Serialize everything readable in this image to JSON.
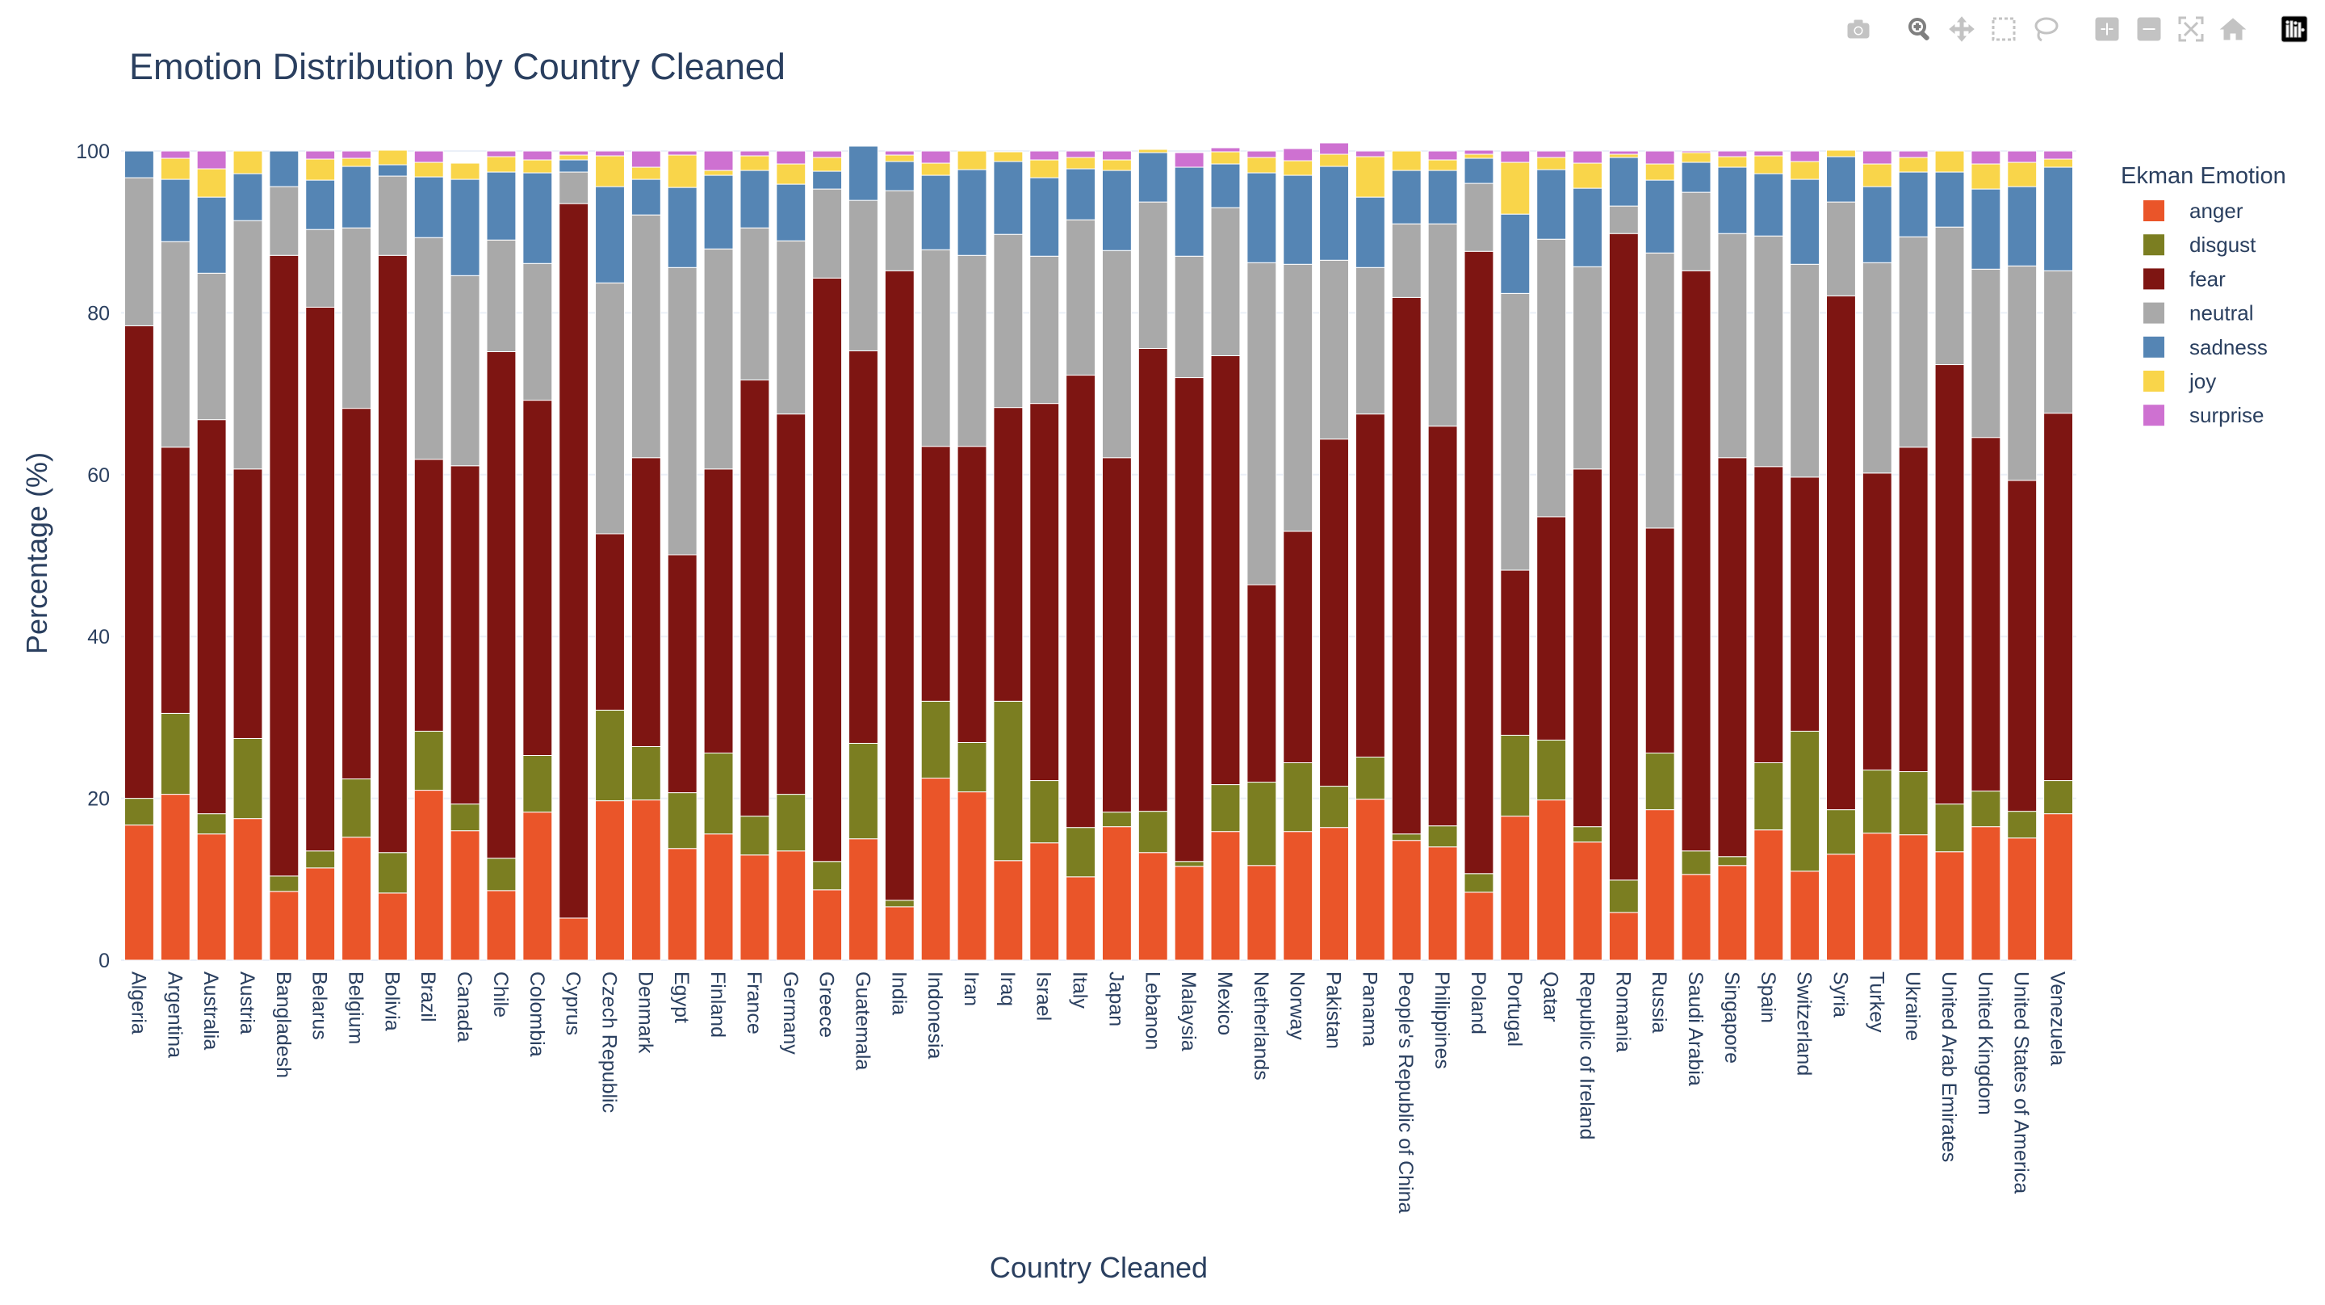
{
  "modebar": {
    "buttons": [
      {
        "name": "camera-icon",
        "group": 1
      },
      {
        "name": "zoom-icon",
        "group": 2
      },
      {
        "name": "pan-icon",
        "group": 2
      },
      {
        "name": "box-select-icon",
        "group": 2
      },
      {
        "name": "lasso-select-icon",
        "group": 2
      },
      {
        "name": "zoom-in-icon",
        "group": 3
      },
      {
        "name": "zoom-out-icon",
        "group": 3
      },
      {
        "name": "autoscale-icon",
        "group": 3
      },
      {
        "name": "reset-axes-icon",
        "group": 3
      },
      {
        "name": "plotly-logo-icon",
        "group": 4
      }
    ],
    "icon_color": "#c3c3c3",
    "active_color": "#7f7f7f"
  },
  "chart_data": {
    "type": "bar",
    "barmode": "stack",
    "title": "Emotion Distribution by Country Cleaned",
    "xlabel": "Country Cleaned",
    "ylabel": "Percentage (%)",
    "ylim": [
      0,
      100
    ],
    "yticks": [
      0,
      20,
      40,
      60,
      80,
      100
    ],
    "grid": true,
    "legend_title": "Ekman Emotion",
    "legend_position": "top-right",
    "categories": [
      "Algeria",
      "Argentina",
      "Australia",
      "Austria",
      "Bangladesh",
      "Belarus",
      "Belgium",
      "Bolivia",
      "Brazil",
      "Canada",
      "Chile",
      "Colombia",
      "Cyprus",
      "Czech Republic",
      "Denmark",
      "Egypt",
      "Finland",
      "France",
      "Germany",
      "Greece",
      "Guatemala",
      "India",
      "Indonesia",
      "Iran",
      "Iraq",
      "Israel",
      "Italy",
      "Japan",
      "Lebanon",
      "Malaysia",
      "Mexico",
      "Netherlands",
      "Norway",
      "Pakistan",
      "Panama",
      "People's Republic of China",
      "Philippines",
      "Poland",
      "Portugal",
      "Qatar",
      "Republic of Ireland",
      "Romania",
      "Russia",
      "Saudi Arabia",
      "Singapore",
      "Spain",
      "Switzerland",
      "Syria",
      "Turkey",
      "Ukraine",
      "United Arab Emirates",
      "United Kingdom",
      "United States of America",
      "Venezuela"
    ],
    "series": [
      {
        "name": "anger",
        "color": "#ea5529",
        "values": [
          16.7,
          20.5,
          15.6,
          17.5,
          8.5,
          11.4,
          15.2,
          8.3,
          21.0,
          16.0,
          8.6,
          18.3,
          5.2,
          19.7,
          19.8,
          13.8,
          15.6,
          13.0,
          13.5,
          8.7,
          15.0,
          6.6,
          22.5,
          20.8,
          12.3,
          14.5,
          10.3,
          16.5,
          13.3,
          11.6,
          15.9,
          11.7,
          15.9,
          16.4,
          19.9,
          14.8,
          14.0,
          8.4,
          17.8,
          19.8,
          14.6,
          5.9,
          18.6,
          10.6,
          11.7,
          16.1,
          11.0,
          13.1,
          15.7,
          15.5,
          13.4,
          16.5,
          15.1,
          18.1
        ]
      },
      {
        "name": "disgust",
        "color": "#7b7e21",
        "values": [
          3.3,
          10.0,
          2.5,
          9.9,
          1.9,
          2.1,
          7.2,
          5.0,
          7.3,
          3.3,
          4.0,
          7.0,
          0.0,
          11.2,
          6.6,
          6.9,
          10.0,
          4.8,
          7.0,
          3.5,
          11.8,
          0.8,
          9.5,
          6.1,
          19.7,
          7.7,
          6.1,
          1.8,
          5.1,
          0.6,
          5.8,
          10.3,
          8.5,
          5.1,
          5.2,
          0.8,
          2.6,
          2.3,
          10.0,
          7.4,
          1.9,
          4.0,
          7.0,
          2.9,
          1.1,
          8.3,
          17.3,
          5.5,
          7.8,
          7.8,
          5.9,
          4.4,
          3.3,
          4.1
        ]
      },
      {
        "name": "fear",
        "color": "#7e1512",
        "values": [
          58.4,
          32.9,
          48.7,
          33.3,
          76.7,
          67.2,
          45.8,
          73.8,
          33.6,
          41.8,
          62.6,
          43.9,
          88.3,
          21.8,
          35.7,
          29.4,
          35.1,
          53.9,
          47.0,
          72.1,
          48.5,
          77.8,
          31.5,
          36.6,
          36.3,
          46.6,
          55.9,
          43.8,
          57.2,
          59.8,
          53.0,
          24.4,
          28.6,
          42.9,
          42.4,
          66.3,
          49.4,
          76.9,
          20.4,
          27.6,
          44.2,
          79.9,
          27.8,
          71.7,
          49.3,
          36.6,
          31.4,
          63.5,
          36.7,
          40.1,
          54.3,
          43.7,
          40.9,
          45.4
        ]
      },
      {
        "name": "neutral",
        "color": "#a9a9a9",
        "values": [
          18.3,
          25.4,
          18.1,
          30.7,
          8.5,
          9.6,
          22.3,
          9.8,
          27.4,
          23.5,
          13.8,
          16.9,
          3.9,
          31.0,
          30.0,
          35.5,
          27.2,
          18.8,
          21.4,
          11.0,
          18.6,
          9.9,
          24.3,
          23.6,
          21.4,
          18.2,
          19.2,
          25.6,
          18.1,
          15.0,
          18.3,
          39.8,
          33.0,
          22.1,
          18.1,
          9.1,
          25.0,
          8.4,
          34.2,
          34.3,
          25.0,
          3.4,
          34.0,
          9.7,
          27.7,
          28.5,
          26.3,
          11.6,
          26.0,
          26.0,
          17.0,
          20.8,
          26.5,
          17.6
        ]
      },
      {
        "name": "sadness",
        "color": "#5585b4",
        "values": [
          3.3,
          7.7,
          9.4,
          5.8,
          4.4,
          6.1,
          7.6,
          1.4,
          7.5,
          11.9,
          8.4,
          11.2,
          1.5,
          11.9,
          4.4,
          9.9,
          9.1,
          7.1,
          7.0,
          2.2,
          6.7,
          3.6,
          9.2,
          10.6,
          9.0,
          9.7,
          6.3,
          9.9,
          6.1,
          11.0,
          5.4,
          11.1,
          11.0,
          11.6,
          8.7,
          6.6,
          6.6,
          3.1,
          9.8,
          8.6,
          9.7,
          6.0,
          9.0,
          3.7,
          8.2,
          7.7,
          10.5,
          5.6,
          9.4,
          8.0,
          6.8,
          9.9,
          9.8,
          12.8
        ]
      },
      {
        "name": "joy",
        "color": "#f9d54a",
        "values": [
          0.0,
          2.6,
          3.5,
          2.8,
          0.0,
          2.6,
          1.0,
          1.8,
          1.8,
          2.0,
          1.9,
          1.6,
          0.6,
          3.8,
          1.5,
          4.0,
          0.6,
          1.8,
          2.5,
          1.7,
          0.0,
          0.8,
          1.5,
          2.3,
          1.2,
          2.2,
          1.4,
          1.3,
          0.4,
          0.0,
          1.5,
          1.9,
          1.8,
          1.5,
          5.0,
          2.4,
          1.3,
          0.5,
          6.4,
          1.5,
          3.1,
          0.4,
          2.0,
          1.2,
          1.3,
          2.2,
          2.2,
          0.8,
          2.8,
          1.8,
          2.6,
          3.1,
          3.0,
          1.0
        ]
      },
      {
        "name": "surprise",
        "color": "#ce71d1",
        "values": [
          0.0,
          0.9,
          2.2,
          0.0,
          0.0,
          1.0,
          0.9,
          0.0,
          1.4,
          0.0,
          0.7,
          1.1,
          0.5,
          0.6,
          2.0,
          0.5,
          2.4,
          0.6,
          1.6,
          0.8,
          0.0,
          0.5,
          1.5,
          0.0,
          0.0,
          1.1,
          0.8,
          1.1,
          0.0,
          1.8,
          0.5,
          0.8,
          1.5,
          1.4,
          0.7,
          0.0,
          1.1,
          0.5,
          1.4,
          0.8,
          1.5,
          0.4,
          1.6,
          0.2,
          0.7,
          0.6,
          1.3,
          0.0,
          1.6,
          0.8,
          0.0,
          1.6,
          1.4,
          1.0
        ]
      }
    ]
  }
}
